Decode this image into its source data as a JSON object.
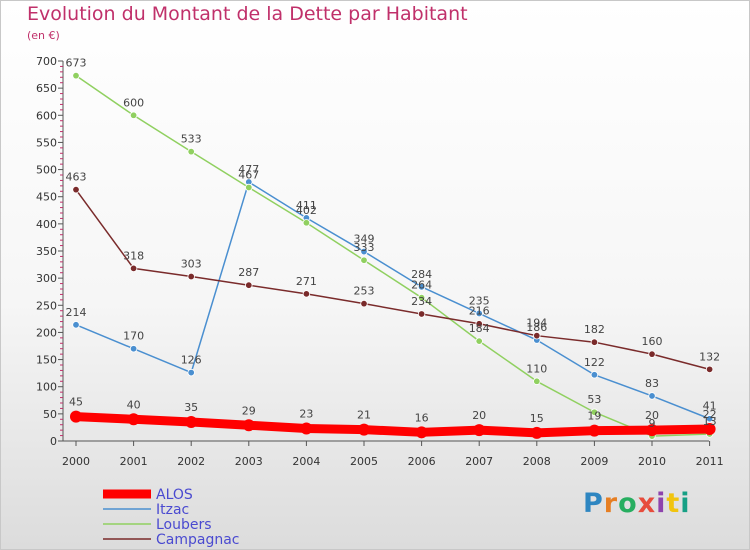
{
  "header": {
    "title": "Evolution du Montant de la Dette par Habitant",
    "unit": "(en €)"
  },
  "logo": {
    "text": "Proxiti",
    "colors": [
      "#2e86c1",
      "#e67e22",
      "#27ae60",
      "#e74c3c",
      "#8e44ad",
      "#f1c40f",
      "#16a085"
    ]
  },
  "chart_data": {
    "type": "line",
    "x": [
      "2000",
      "2001",
      "2002",
      "2003",
      "2004",
      "2005",
      "2006",
      "2007",
      "2008",
      "2009",
      "2010",
      "2011"
    ],
    "ylim": [
      0,
      700
    ],
    "yticks": [
      0,
      50,
      100,
      150,
      200,
      250,
      300,
      350,
      400,
      450,
      500,
      550,
      600,
      650,
      700
    ],
    "grid": false,
    "legend_position": "bottom-left",
    "series": [
      {
        "name": "ALOS",
        "color": "#ff0000",
        "values": [
          45,
          40,
          35,
          29,
          23,
          21,
          16,
          20,
          15,
          19,
          20,
          22
        ]
      },
      {
        "name": "Itzac",
        "color": "#4a8fd0",
        "values": [
          214,
          170,
          126,
          477,
          411,
          349,
          284,
          235,
          186,
          122,
          83,
          41
        ]
      },
      {
        "name": "Loubers",
        "color": "#90d060",
        "values": [
          673,
          600,
          533,
          467,
          402,
          333,
          264,
          184,
          110,
          53,
          9,
          13
        ]
      },
      {
        "name": "Campagnac",
        "color": "#7a2b2b",
        "values": [
          463,
          318,
          303,
          287,
          271,
          253,
          234,
          216,
          194,
          182,
          160,
          132
        ]
      }
    ]
  }
}
